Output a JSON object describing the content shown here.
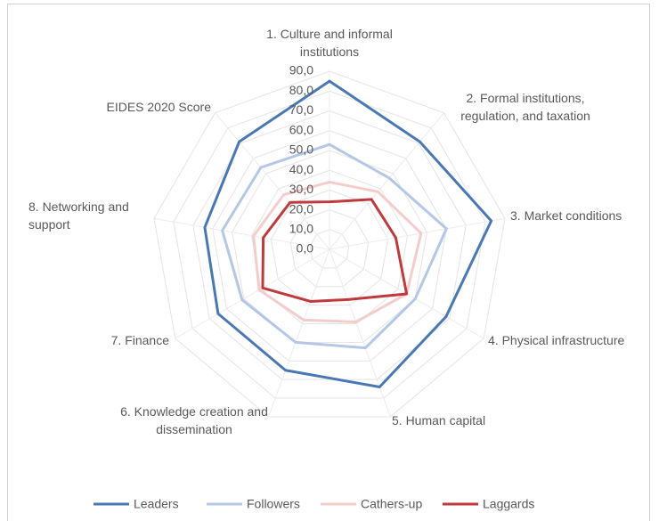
{
  "chart_data": {
    "type": "radar",
    "categories": [
      "1. Culture and informal institutions",
      "2. Formal institutions, regulation, and taxation",
      "3. Market conditions",
      "4. Physical infrastructure",
      "5. Human capital",
      "6. Knowledge creation and dissemination",
      "7. Finance",
      "8. Networking and support",
      "EIDES 2020 Score"
    ],
    "series": [
      {
        "name": "Leaders",
        "color": "#4a78b5",
        "values": [
          85,
          71,
          83,
          68,
          74,
          65,
          65,
          64,
          71
        ]
      },
      {
        "name": "Followers",
        "color": "#b4c7e7",
        "values": [
          53,
          47,
          60,
          50,
          53,
          50,
          51,
          55,
          54
        ]
      },
      {
        "name": "Cathers-up",
        "color": "#f4cccc",
        "values": [
          34,
          38,
          47,
          45,
          39,
          38,
          41,
          39,
          36
        ]
      },
      {
        "name": "Laggards",
        "color": "#c0393b",
        "values": [
          24,
          33,
          34,
          45,
          27,
          28,
          39,
          34,
          31
        ]
      }
    ],
    "ylim": [
      0,
      90
    ],
    "yticks": [
      {
        "value": 0,
        "label": "0,0"
      },
      {
        "value": 10,
        "label": "10,0"
      },
      {
        "value": 20,
        "label": "20,0"
      },
      {
        "value": 30,
        "label": "30,0"
      },
      {
        "value": 40,
        "label": "40,0"
      },
      {
        "value": 50,
        "label": "50,0"
      },
      {
        "value": 60,
        "label": "60,0"
      },
      {
        "value": 70,
        "label": "70,0"
      },
      {
        "value": 80,
        "label": "80,0"
      },
      {
        "value": 90,
        "label": "90,0"
      }
    ],
    "grid": true,
    "legend": "bottom"
  }
}
